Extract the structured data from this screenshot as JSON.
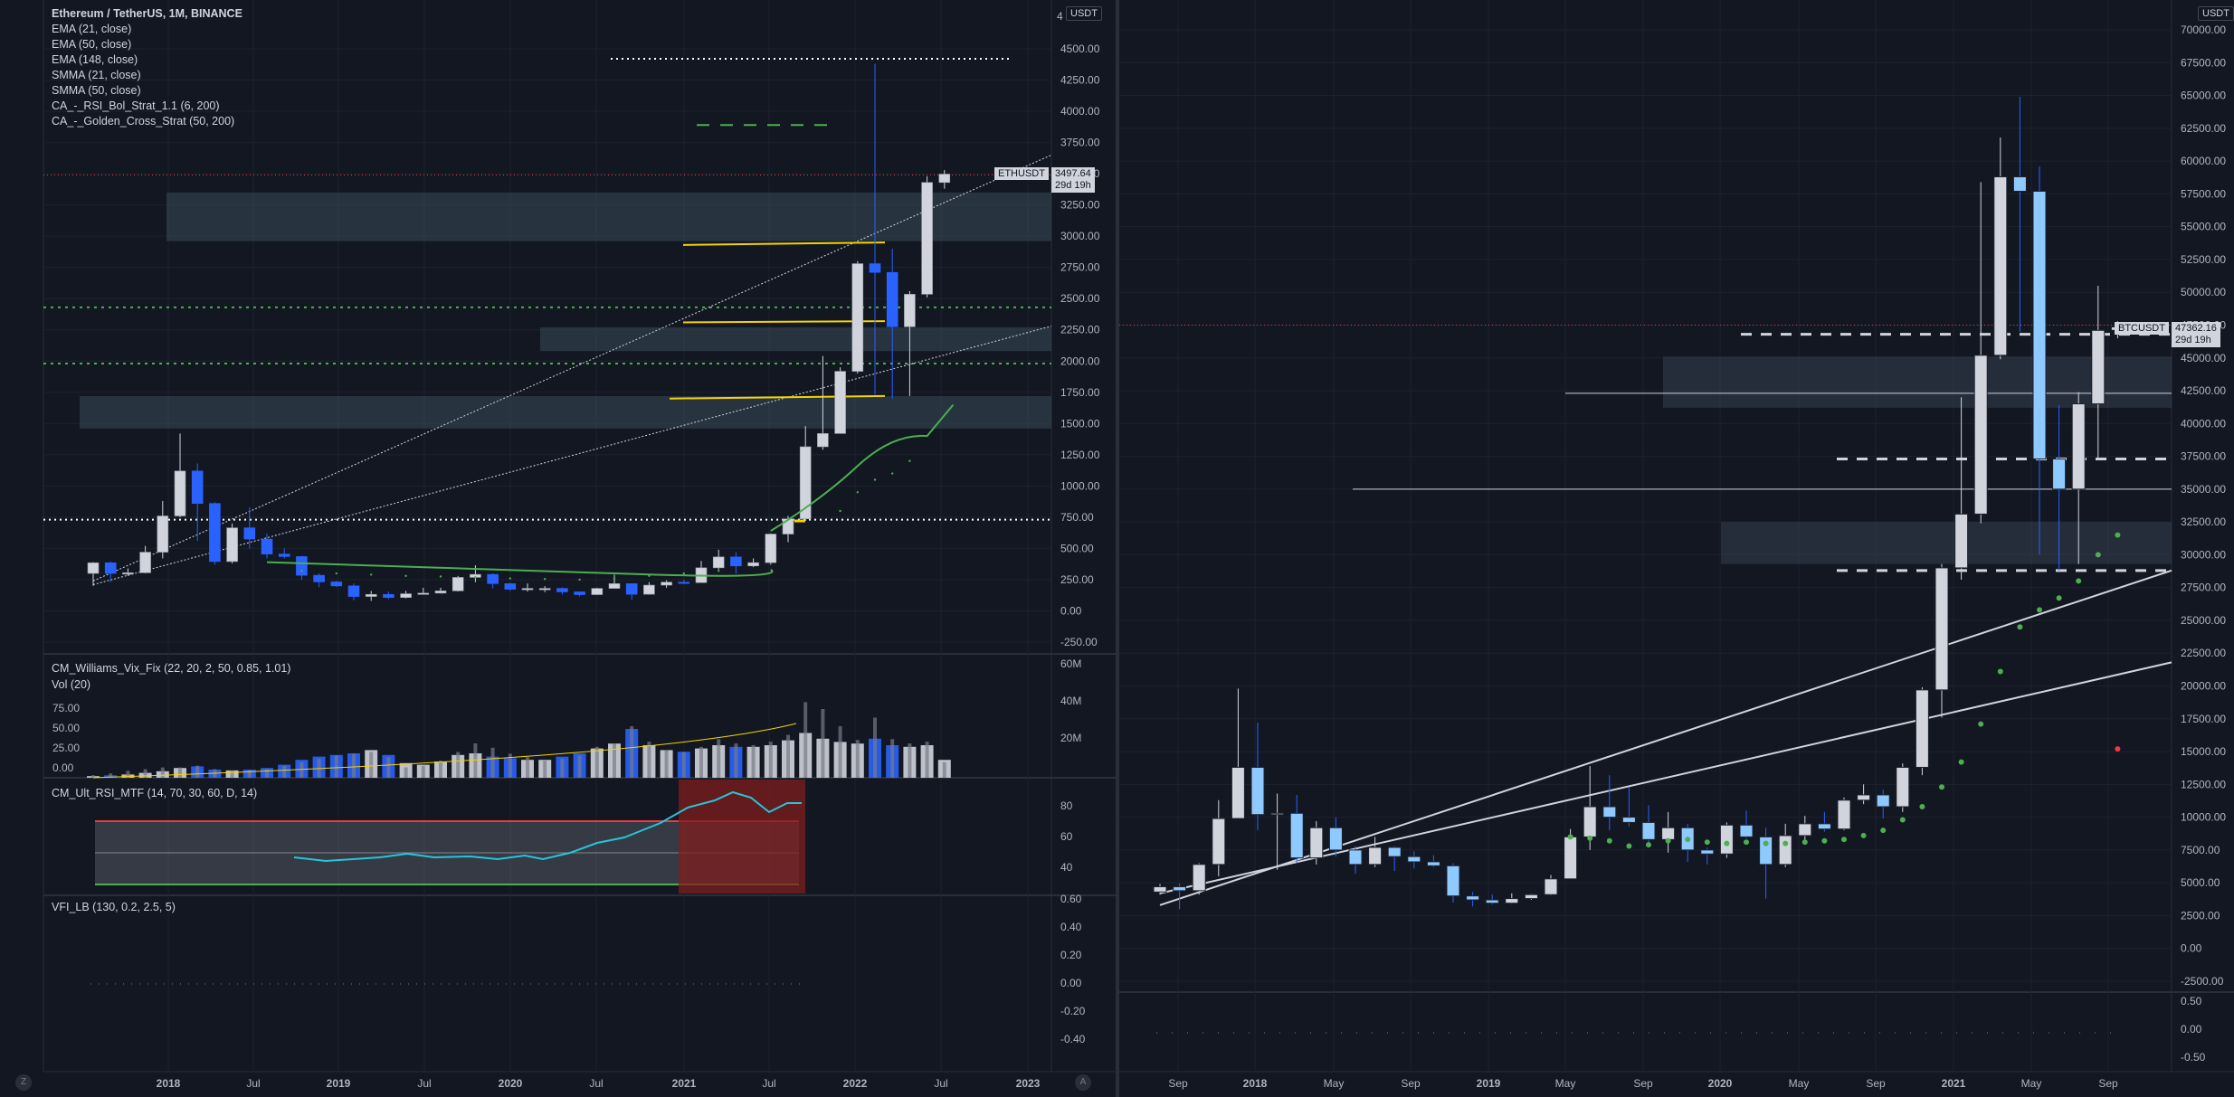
{
  "colors": {
    "bg": "#131722",
    "grid": "#1e222d",
    "text": "#b2b5be",
    "bull": "#d1d4dc",
    "bear": "#2962ff",
    "bear_right": "#8ec9ff",
    "fill_zone": "#3b4a5a",
    "ema_green": "#4caf50",
    "yellow": "#f5d300",
    "rsi_line": "#26c6da",
    "rsi_band": "#787b86",
    "rsi_hot": "#7f1d1d",
    "price_line": "#f23645"
  },
  "left": {
    "title": "Ethereum / TetherUS, 1M, BINANCE",
    "indicators": [
      "EMA (21, close)",
      "EMA (50, close)",
      "EMA (148, close)",
      "SMMA (21, close)",
      "SMMA (50, close)",
      "CA_-_RSI_Bol_Strat_1.1 (6, 200)",
      "CA_-_Golden_Cross_Strat (50, 200)"
    ],
    "currency": "USDT",
    "top_tick": "4",
    "price_ticks": [
      "4500.00",
      "4250.00",
      "4000.00",
      "3750.00",
      "3500.00",
      "3250.00",
      "3000.00",
      "2750.00",
      "2500.00",
      "2250.00",
      "2000.00",
      "1750.00",
      "1500.00",
      "1250.00",
      "1000.00",
      "750.00",
      "500.00",
      "250.00",
      "0.00",
      "-250.00"
    ],
    "price_values": [
      4500,
      4250,
      4000,
      3750,
      3500,
      3250,
      3000,
      2750,
      2500,
      2250,
      2000,
      1750,
      1500,
      1250,
      1000,
      750,
      500,
      250,
      0,
      -250
    ],
    "symbol": "ETHUSDT",
    "last_price": "3497.64",
    "countdown": "29d 19h",
    "vix_title": "CM_Williams_Vix_Fix (22, 20, 2, 50, 0.85, 1.01)",
    "vol_title": "Vol (20)",
    "vix_ticks": [
      "75.00",
      "50.00",
      "25.00",
      "0.00"
    ],
    "vol_ticks": [
      "60M",
      "40M",
      "20M"
    ],
    "rsi_title": "CM_Ult_RSI_MTF (14, 70, 30, 60, D, 14)",
    "rsi_ticks": [
      "80",
      "60",
      "40"
    ],
    "vfi_title": "VFI_LB (130, 0.2, 2.5, 5)",
    "vfi_ticks": [
      "0.60",
      "0.40",
      "0.20",
      "0.00",
      "-0.20",
      "-0.40"
    ],
    "time_labels": [
      "2018",
      "Jul",
      "2019",
      "Jul",
      "2020",
      "Jul",
      "2021",
      "Jul",
      "2022",
      "Jul",
      "2023"
    ],
    "corner_left": "Z",
    "corner_right": "A"
  },
  "right": {
    "currency": "USDT",
    "price_ticks": [
      "70000.00",
      "67500.00",
      "65000.00",
      "62500.00",
      "60000.00",
      "57500.00",
      "55000.00",
      "52500.00",
      "50000.00",
      "47500.00",
      "45000.00",
      "42500.00",
      "40000.00",
      "37500.00",
      "35000.00",
      "32500.00",
      "30000.00",
      "27500.00",
      "25000.00",
      "22500.00",
      "20000.00",
      "17500.00",
      "15000.00",
      "12500.00",
      "10000.00",
      "7500.00",
      "5000.00",
      "2500.00",
      "0.00",
      "-2500.00"
    ],
    "price_values": [
      70000,
      67500,
      65000,
      62500,
      60000,
      57500,
      55000,
      52500,
      50000,
      47500,
      45000,
      42500,
      40000,
      37500,
      35000,
      32500,
      30000,
      27500,
      25000,
      22500,
      20000,
      17500,
      15000,
      12500,
      10000,
      7500,
      5000,
      2500,
      0,
      -2500
    ],
    "symbol": "BTCUSDT",
    "last_price": "47362.16",
    "countdown": "29d 19h",
    "sub_ticks": [
      "0.50",
      "0.00",
      "-0.50"
    ],
    "time_labels": [
      "Sep",
      "2018",
      "May",
      "Sep",
      "2019",
      "May",
      "Sep",
      "2020",
      "May",
      "Sep",
      "2021",
      "May",
      "Sep"
    ]
  },
  "chart_data": [
    {
      "type": "candlestick",
      "title": "Ethereum / TetherUS, 1M, BINANCE",
      "symbol": "ETHUSDT",
      "interval": "1M",
      "ylim": [
        -300,
        4650
      ],
      "x": [
        "2017-08",
        "2017-09",
        "2017-10",
        "2017-11",
        "2017-12",
        "2018-01",
        "2018-02",
        "2018-03",
        "2018-04",
        "2018-05",
        "2018-06",
        "2018-07",
        "2018-08",
        "2018-09",
        "2018-10",
        "2018-11",
        "2018-12",
        "2019-01",
        "2019-02",
        "2019-03",
        "2019-04",
        "2019-05",
        "2019-06",
        "2019-07",
        "2019-08",
        "2019-09",
        "2019-10",
        "2019-11",
        "2019-12",
        "2020-01",
        "2020-02",
        "2020-03",
        "2020-04",
        "2020-05",
        "2020-06",
        "2020-07",
        "2020-08",
        "2020-09",
        "2020-10",
        "2020-11",
        "2020-12",
        "2021-01",
        "2021-02",
        "2021-03",
        "2021-04",
        "2021-05",
        "2021-06",
        "2021-07",
        "2021-08",
        "2021-09"
      ],
      "ohlc": [
        [
          300,
          390,
          200,
          385
        ],
        [
          385,
          395,
          230,
          300
        ],
        [
          300,
          340,
          280,
          305
        ],
        [
          305,
          520,
          300,
          470
        ],
        [
          470,
          880,
          420,
          760
        ],
        [
          760,
          1420,
          750,
          1120
        ],
        [
          1120,
          1180,
          560,
          860
        ],
        [
          860,
          870,
          370,
          395
        ],
        [
          395,
          700,
          380,
          665
        ],
        [
          665,
          830,
          500,
          575
        ],
        [
          575,
          620,
          420,
          455
        ],
        [
          455,
          500,
          420,
          435
        ],
        [
          435,
          440,
          250,
          285
        ],
        [
          285,
          300,
          190,
          232
        ],
        [
          232,
          240,
          190,
          200
        ],
        [
          200,
          220,
          85,
          115
        ],
        [
          115,
          160,
          80,
          132
        ],
        [
          132,
          155,
          95,
          107
        ],
        [
          107,
          160,
          100,
          137
        ],
        [
          137,
          185,
          130,
          142
        ],
        [
          142,
          185,
          140,
          160
        ],
        [
          160,
          280,
          155,
          268
        ],
        [
          268,
          365,
          230,
          292
        ],
        [
          292,
          300,
          180,
          218
        ],
        [
          218,
          225,
          160,
          173
        ],
        [
          173,
          220,
          155,
          180
        ],
        [
          180,
          198,
          150,
          180
        ],
        [
          180,
          188,
          130,
          152
        ],
        [
          152,
          155,
          116,
          130
        ],
        [
          130,
          185,
          127,
          180
        ],
        [
          180,
          290,
          180,
          218
        ],
        [
          218,
          220,
          90,
          133
        ],
        [
          133,
          230,
          130,
          206
        ],
        [
          206,
          245,
          185,
          230
        ],
        [
          230,
          250,
          215,
          226
        ],
        [
          226,
          400,
          225,
          345
        ],
        [
          345,
          490,
          330,
          432
        ],
        [
          432,
          470,
          300,
          360
        ],
        [
          360,
          420,
          350,
          386
        ],
        [
          386,
          620,
          370,
          615
        ],
        [
          615,
          760,
          550,
          737
        ],
        [
          737,
          1480,
          720,
          1314
        ],
        [
          1314,
          2040,
          1290,
          1420
        ],
        [
          1420,
          1950,
          1420,
          1918
        ],
        [
          1918,
          2800,
          1900,
          2780
        ],
        [
          2780,
          4380,
          1730,
          2710
        ],
        [
          2710,
          2900,
          1700,
          2275
        ],
        [
          2275,
          2560,
          1720,
          2535
        ],
        [
          2535,
          3480,
          2510,
          3430
        ],
        [
          3430,
          3530,
          3380,
          3497
        ]
      ],
      "emas": {
        "ema_green": [
          [
            2020,
            "2020-12",
            810
          ],
          [
            2021,
            "2021-09",
            1650
          ]
        ]
      },
      "last_price": 3497.64
    },
    {
      "type": "candlestick",
      "symbol": "BTCUSDT",
      "interval": "1M",
      "ylim": [
        -3000,
        71000
      ],
      "x": [
        "2017-08",
        "2017-09",
        "2017-10",
        "2017-11",
        "2017-12",
        "2018-01",
        "2018-02",
        "2018-03",
        "2018-04",
        "2018-05",
        "2018-06",
        "2018-07",
        "2018-08",
        "2018-09",
        "2018-10",
        "2018-11",
        "2018-12",
        "2019-01",
        "2019-02",
        "2019-03",
        "2019-04",
        "2019-05",
        "2019-06",
        "2019-07",
        "2019-08",
        "2019-09",
        "2019-10",
        "2019-11",
        "2019-12",
        "2020-01",
        "2020-02",
        "2020-03",
        "2020-04",
        "2020-05",
        "2020-06",
        "2020-07",
        "2020-08",
        "2020-09",
        "2020-10",
        "2020-11",
        "2020-12",
        "2021-01",
        "2021-02",
        "2021-03",
        "2021-04",
        "2021-05",
        "2021-06",
        "2021-07",
        "2021-08",
        "2021-09"
      ],
      "ohlc": [
        [
          4300,
          4900,
          4100,
          4700
        ],
        [
          4700,
          4950,
          3000,
          4400
        ],
        [
          4400,
          6500,
          4100,
          6400
        ],
        [
          6400,
          11300,
          5500,
          9900
        ],
        [
          9900,
          19800,
          10000,
          13800
        ],
        [
          13800,
          17200,
          9000,
          10200
        ],
        [
          10200,
          11800,
          6000,
          10300
        ],
        [
          10300,
          11700,
          6500,
          6900
        ],
        [
          6900,
          9700,
          6400,
          9200
        ],
        [
          9200,
          10000,
          7000,
          7500
        ],
        [
          7500,
          7800,
          5700,
          6400
        ],
        [
          6400,
          8500,
          6200,
          7700
        ],
        [
          7700,
          7800,
          5900,
          7000
        ],
        [
          7000,
          7400,
          6100,
          6600
        ],
        [
          6600,
          7100,
          6200,
          6300
        ],
        [
          6300,
          6500,
          3500,
          4000
        ],
        [
          4000,
          4300,
          3200,
          3700
        ],
        [
          3700,
          4100,
          3350,
          3450
        ],
        [
          3450,
          4200,
          3400,
          3800
        ],
        [
          3800,
          4150,
          3700,
          4100
        ],
        [
          4100,
          5600,
          4050,
          5300
        ],
        [
          5300,
          9100,
          5300,
          8500
        ],
        [
          8500,
          13900,
          7500,
          10800
        ],
        [
          10800,
          13200,
          9000,
          10000
        ],
        [
          10000,
          12300,
          9300,
          9600
        ],
        [
          9600,
          10900,
          7800,
          8300
        ],
        [
          8300,
          10400,
          7300,
          9200
        ],
        [
          9200,
          9500,
          6600,
          7500
        ],
        [
          7500,
          7700,
          6400,
          7200
        ],
        [
          7200,
          9600,
          6900,
          9400
        ],
        [
          9400,
          10500,
          8400,
          8500
        ],
        [
          8500,
          9200,
          3800,
          6400
        ],
        [
          6400,
          9500,
          6200,
          8600
        ],
        [
          8600,
          10100,
          8100,
          9500
        ],
        [
          9500,
          10400,
          8900,
          9100
        ],
        [
          9100,
          11500,
          9000,
          11300
        ],
        [
          11300,
          12500,
          11000,
          11700
        ],
        [
          11700,
          12100,
          9900,
          10800
        ],
        [
          10800,
          14100,
          10400,
          13800
        ],
        [
          13800,
          19900,
          13200,
          19700
        ],
        [
          19700,
          29300,
          17600,
          29000
        ],
        [
          29000,
          42000,
          28100,
          33100
        ],
        [
          33100,
          58400,
          32400,
          45200
        ],
        [
          45200,
          61800,
          44900,
          58800
        ],
        [
          58800,
          64900,
          47000,
          57700
        ],
        [
          57700,
          59600,
          30000,
          37300
        ],
        [
          37300,
          41400,
          28800,
          35000
        ],
        [
          35000,
          42400,
          29300,
          41500
        ],
        [
          41500,
          50500,
          37300,
          47100
        ],
        [
          47100,
          47800,
          46500,
          47362
        ]
      ],
      "last_price": 47362.16
    }
  ]
}
